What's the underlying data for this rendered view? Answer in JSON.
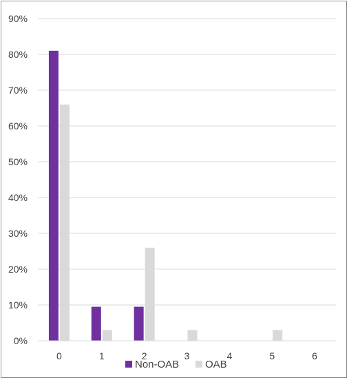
{
  "chart_data": {
    "type": "bar",
    "categories": [
      "0",
      "1",
      "2",
      "3",
      "4",
      "5",
      "6"
    ],
    "series": [
      {
        "name": "Non-OAB",
        "values": [
          0.81,
          0.095,
          0.095,
          0,
          0,
          0,
          0
        ],
        "color": "#7030a0"
      },
      {
        "name": "OAB",
        "values": [
          0.66,
          0.03,
          0.26,
          0.03,
          0,
          0.03,
          0
        ],
        "color": "#d9d9d9"
      }
    ],
    "yticks": [
      "0%",
      "10%",
      "20%",
      "30%",
      "40%",
      "50%",
      "60%",
      "70%",
      "80%",
      "90%"
    ],
    "ylim": [
      0,
      0.9
    ],
    "grid": true,
    "legend_position": "bottom"
  }
}
